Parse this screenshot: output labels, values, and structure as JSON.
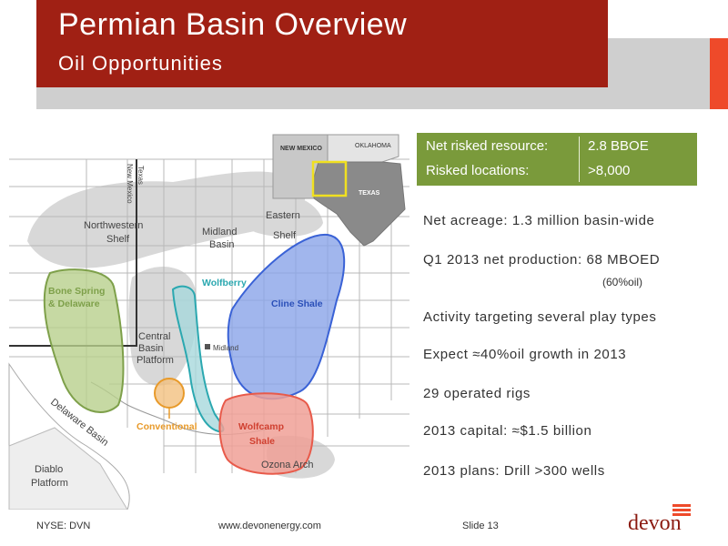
{
  "header": {
    "title": "Permian Basin Overview",
    "subtitle": "Oil Opportunities",
    "colors": {
      "primary_red": "#a02014",
      "accent_orange": "#ee4a2a",
      "gray": "#cfcfcf"
    }
  },
  "stats_box": {
    "color": "#7a9a3b",
    "rows": [
      {
        "label": "Net risked resource:",
        "value": "2.8 BBOE"
      },
      {
        "label": "Risked locations:",
        "value": ">8,000"
      }
    ]
  },
  "bullets": [
    "Net acreage: 1.3 million basin-wide",
    "Q1 2013 net production: 68 MBOED",
    "Activity targeting several play types",
    "Expect ≈40%oil growth in 2013",
    "29 operated rigs",
    "2013 capital: ≈$1.5 billion",
    "2013 plans: Drill >300 wells"
  ],
  "production_note": "(60%oil)",
  "map": {
    "inset": {
      "new_mexico": "NEW MEXICO",
      "oklahoma": "OKLAHOMA",
      "texas": "TEXAS"
    },
    "state_labels": {
      "new_mexico": "New Mexico",
      "texas": "Texas"
    },
    "regions": {
      "northwestern_shelf": [
        "Northwestern",
        "Shelf"
      ],
      "midland_basin": [
        "Midland",
        "Basin"
      ],
      "eastern_shelf": [
        "Eastern",
        "Shelf"
      ],
      "central_basin_platform": [
        "Central",
        "Basin",
        "Platform"
      ],
      "delaware_basin": "Delaware Basin",
      "diablo_platform": [
        "Diablo",
        "Platform"
      ],
      "ozona_arch": "Ozona Arch",
      "midland_city": "Midland"
    },
    "plays": {
      "bone_spring": {
        "label": [
          "Bone Spring",
          "& Delaware"
        ],
        "color": "#8ab04a"
      },
      "wolfberry": {
        "label": "Wolfberry",
        "color": "#2ba8b0"
      },
      "cline": {
        "label": "Cline Shale",
        "color": "#3a62d6"
      },
      "conventional": {
        "label": "Conventional",
        "color": "#e89a2a"
      },
      "wolfcamp": {
        "label": [
          "Wolfcamp",
          "Shale"
        ],
        "color": "#e85a4a"
      }
    }
  },
  "footer": {
    "ticker": "NYSE: DVN",
    "url": "www.devonenergy.com",
    "slide": "Slide 13",
    "logo": "devon"
  }
}
